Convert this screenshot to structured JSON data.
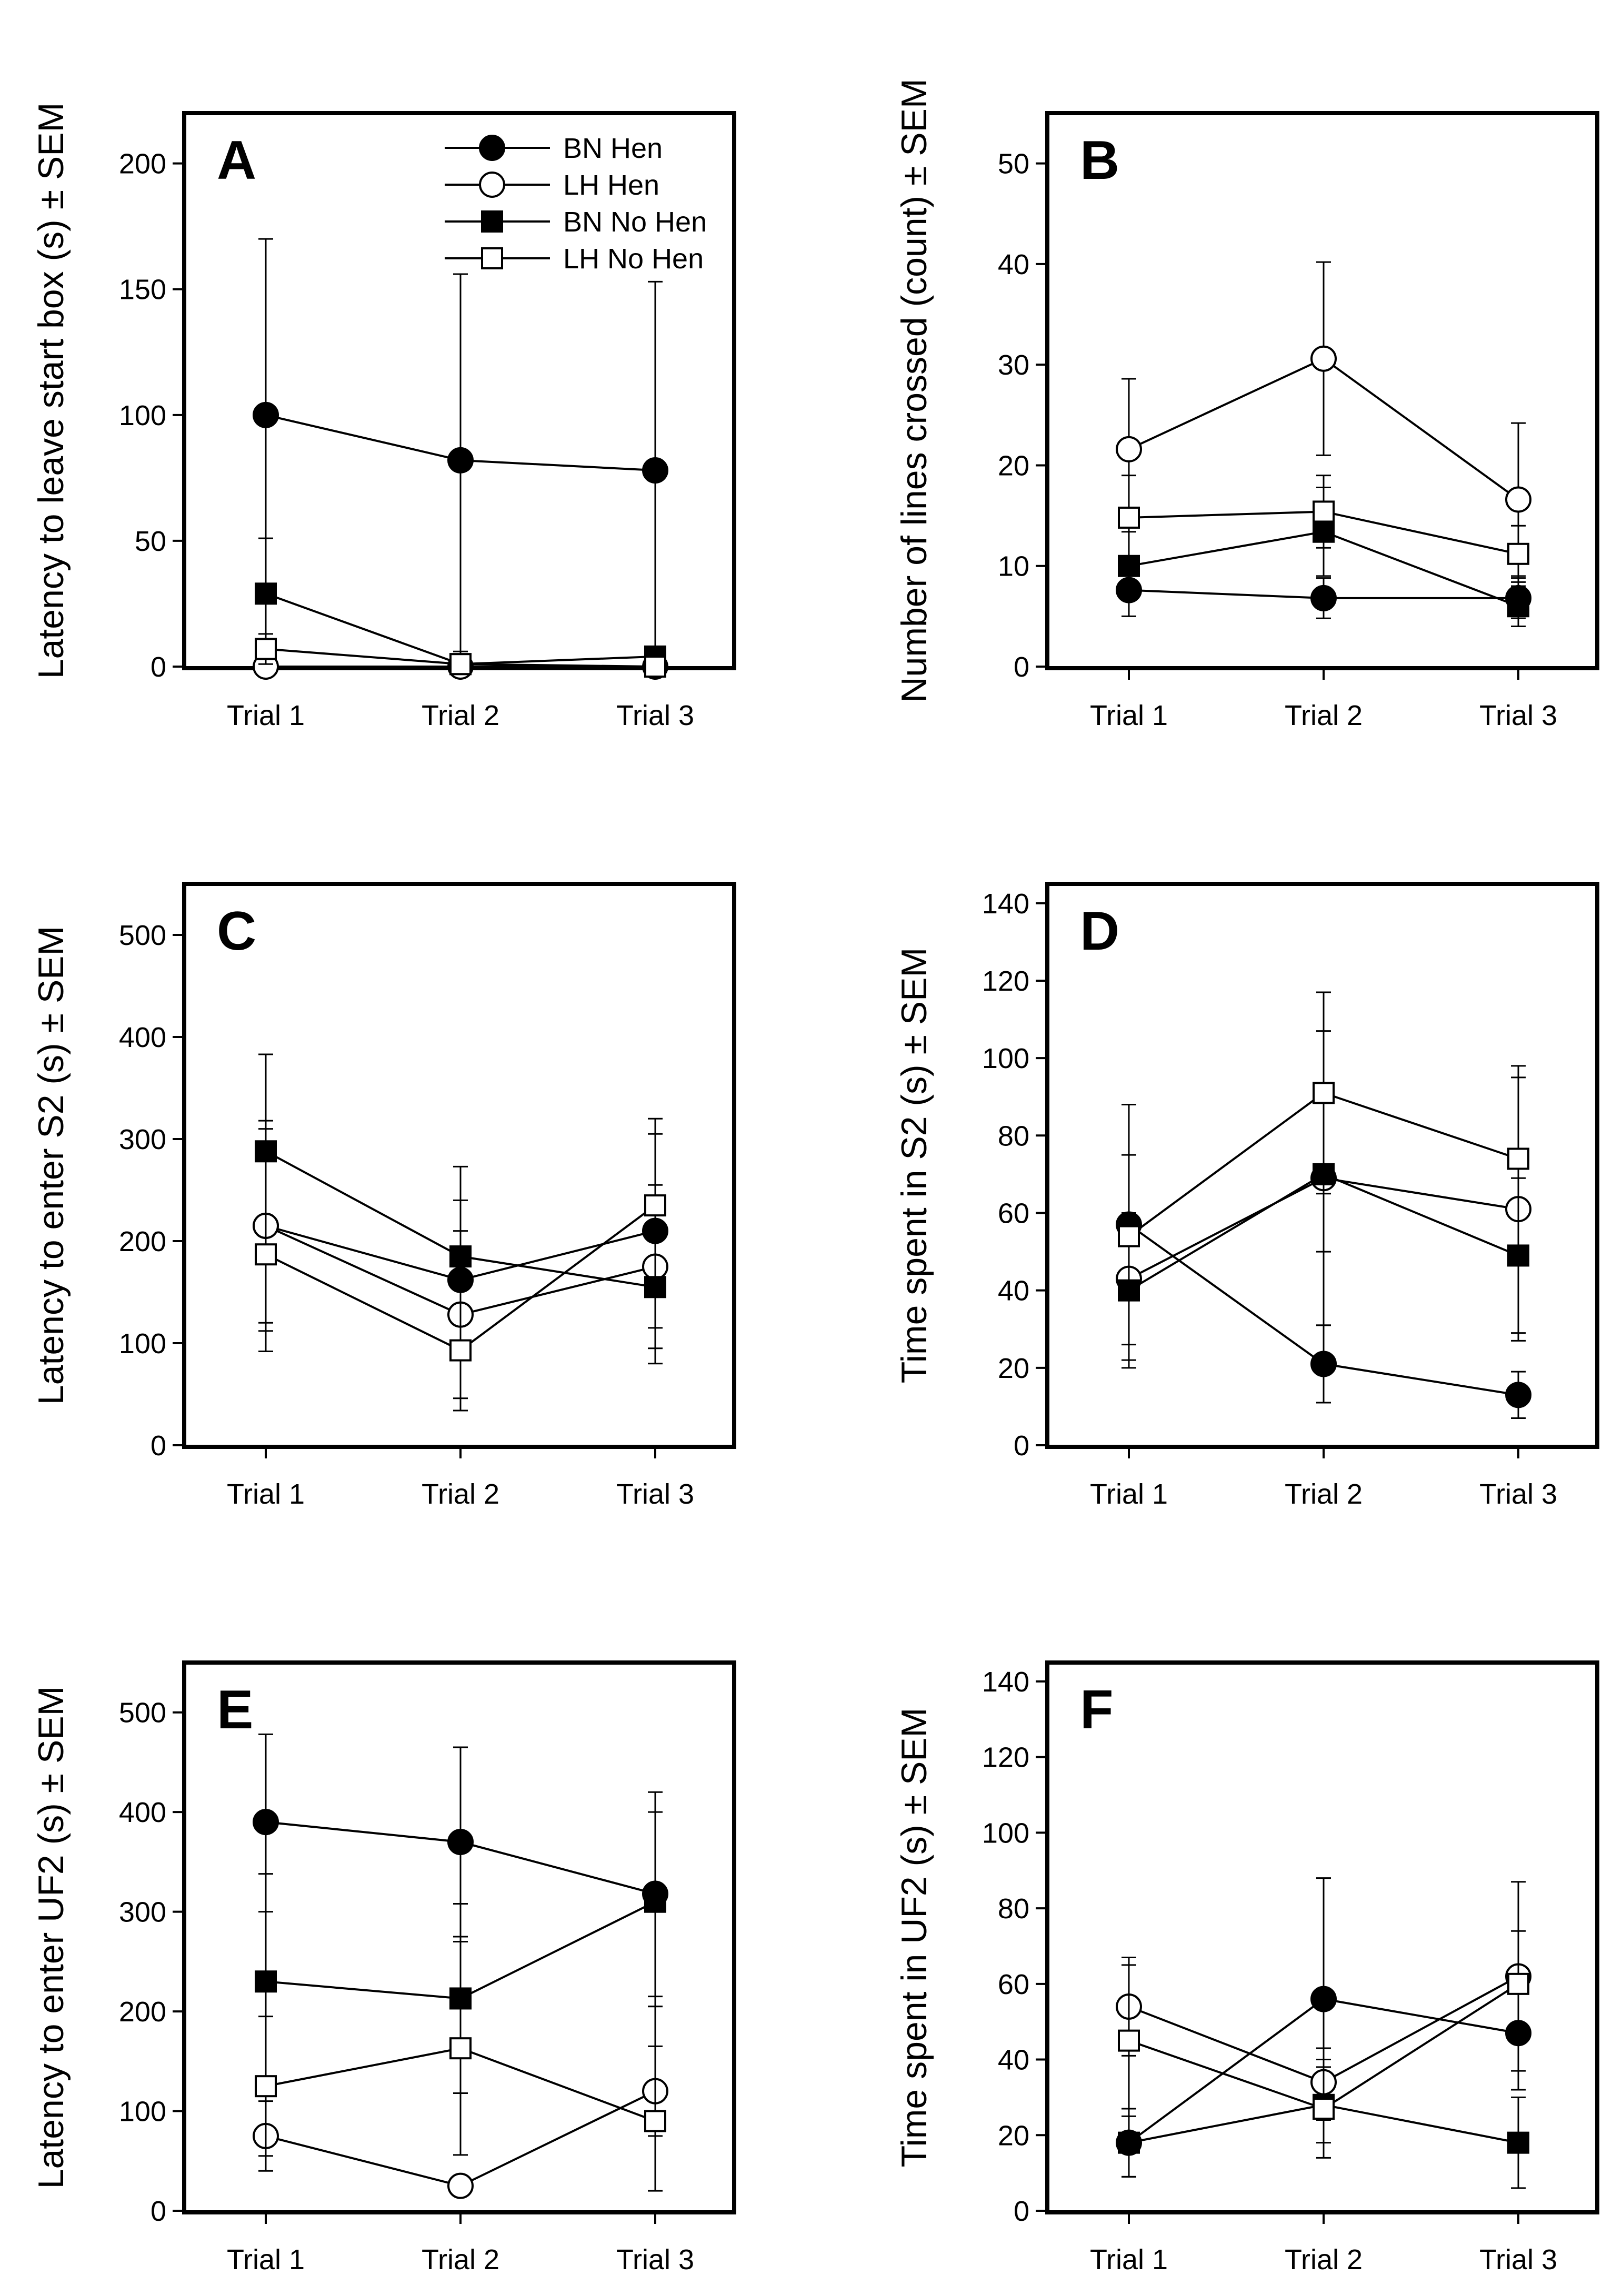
{
  "chart_data": [
    {
      "type": "line",
      "panel": "A",
      "ylabel": "Latency to leave start box (s) ± SEM",
      "categories": [
        "Trial 1",
        "Trial 2",
        "Trial 3"
      ],
      "ylim": [
        0,
        220
      ],
      "yticks": [
        0,
        50,
        100,
        150,
        200
      ],
      "series": [
        {
          "name": "BN Hen",
          "marker": "circle-filled",
          "values": [
            100,
            82,
            78
          ],
          "upper": [
            170,
            156,
            153
          ],
          "lower": [
            0,
            0,
            0
          ]
        },
        {
          "name": "LH Hen",
          "marker": "circle-open",
          "values": [
            0,
            0,
            0
          ],
          "upper": [
            2,
            2,
            2
          ],
          "lower": [
            0,
            0,
            0
          ]
        },
        {
          "name": "BN No Hen",
          "marker": "square-filled",
          "values": [
            29,
            1,
            4
          ],
          "upper": [
            51,
            6,
            8
          ],
          "lower": [
            7,
            0,
            0
          ]
        },
        {
          "name": "LH No Hen",
          "marker": "square-open",
          "values": [
            7,
            1,
            0
          ],
          "upper": [
            13,
            3,
            2
          ],
          "lower": [
            1,
            0,
            0
          ]
        }
      ],
      "legend": {
        "position": "top-right",
        "entries": [
          "BN Hen",
          "LH Hen",
          "BN No Hen",
          "LH No Hen"
        ]
      }
    },
    {
      "type": "line",
      "panel": "B",
      "ylabel": "Number of lines crossed (count) ± SEM",
      "categories": [
        "Trial 1",
        "Trial 2",
        "Trial 3"
      ],
      "ylim": [
        0,
        55
      ],
      "yticks": [
        0,
        10,
        20,
        30,
        40,
        50
      ],
      "series": [
        {
          "name": "BN Hen",
          "marker": "circle-filled",
          "values": [
            7.6,
            6.8,
            6.8
          ],
          "upper": [
            10.2,
            8.8,
            8.8
          ],
          "lower": [
            5.0,
            4.8,
            4.8
          ]
        },
        {
          "name": "LH Hen",
          "marker": "circle-open",
          "values": [
            21.6,
            30.6,
            16.6
          ],
          "upper": [
            28.6,
            40.2,
            24.2
          ],
          "lower": [
            14.6,
            21.0,
            9.0
          ]
        },
        {
          "name": "BN No Hen",
          "marker": "square-filled",
          "values": [
            10,
            13.4,
            6
          ],
          "upper": [
            13.4,
            17.8,
            8.0
          ],
          "lower": [
            6.6,
            9.0,
            4.0
          ]
        },
        {
          "name": "LH No Hen",
          "marker": "square-open",
          "values": [
            14.8,
            15.4,
            11.2
          ],
          "upper": [
            19.0,
            19.0,
            14.0
          ],
          "lower": [
            10.6,
            11.8,
            8.4
          ]
        }
      ]
    },
    {
      "type": "line",
      "panel": "C",
      "ylabel": "Latency to enter S2 (s) ± SEM",
      "categories": [
        "Trial 1",
        "Trial 2",
        "Trial 3"
      ],
      "ylim": [
        0,
        550
      ],
      "yticks": [
        0,
        100,
        200,
        300,
        400,
        500
      ],
      "series": [
        {
          "name": "BN Hen",
          "marker": "circle-filled",
          "values": [
            215,
            162,
            210
          ],
          "upper": [
            310,
            240,
            305
          ],
          "lower": [
            120,
            85,
            115
          ]
        },
        {
          "name": "LH Hen",
          "marker": "circle-open",
          "values": [
            215,
            128,
            175
          ],
          "upper": [
            318,
            210,
            255
          ],
          "lower": [
            112,
            46,
            95
          ]
        },
        {
          "name": "BN No Hen",
          "marker": "square-filled",
          "values": [
            288,
            185,
            155
          ],
          "upper": [
            383,
            273,
            230
          ],
          "lower": [
            193,
            97,
            80
          ]
        },
        {
          "name": "LH No Hen",
          "marker": "square-open",
          "values": [
            187,
            93,
            235
          ],
          "upper": [
            282,
            152,
            320
          ],
          "lower": [
            92,
            34,
            150
          ]
        }
      ]
    },
    {
      "type": "line",
      "panel": "D",
      "ylabel": "Time spent in S2 (s) ± SEM",
      "categories": [
        "Trial 1",
        "Trial 2",
        "Trial 3"
      ],
      "ylim": [
        0,
        145
      ],
      "yticks": [
        0,
        20,
        40,
        60,
        80,
        100,
        120,
        140
      ],
      "series": [
        {
          "name": "BN Hen",
          "marker": "circle-filled",
          "values": [
            57,
            21,
            13
          ],
          "upper": [
            75,
            31,
            19
          ],
          "lower": [
            39,
            11,
            7
          ]
        },
        {
          "name": "LH Hen",
          "marker": "circle-open",
          "values": [
            43,
            69,
            61
          ],
          "upper": [
            60,
            107,
            95
          ],
          "lower": [
            26,
            31,
            27
          ]
        },
        {
          "name": "BN No Hen",
          "marker": "square-filled",
          "values": [
            40,
            70,
            49
          ],
          "upper": [
            58,
            90,
            69
          ],
          "lower": [
            22,
            50,
            29
          ]
        },
        {
          "name": "LH No Hen",
          "marker": "square-open",
          "values": [
            54,
            91,
            74
          ],
          "upper": [
            88,
            117,
            98
          ],
          "lower": [
            20,
            65,
            50
          ]
        }
      ]
    },
    {
      "type": "line",
      "panel": "E",
      "ylabel": "Latency to enter UF2 (s) ± SEM",
      "categories": [
        "Trial 1",
        "Trial 2",
        "Trial 3"
      ],
      "ylim": [
        0,
        550
      ],
      "yticks": [
        0,
        100,
        200,
        300,
        400,
        500
      ],
      "series": [
        {
          "name": "BN Hen",
          "marker": "circle-filled",
          "values": [
            390,
            370,
            318
          ],
          "upper": [
            478,
            465,
            420
          ],
          "lower": [
            300,
            275,
            215
          ]
        },
        {
          "name": "LH Hen",
          "marker": "circle-open",
          "values": [
            75,
            25,
            120
          ],
          "upper": [
            110,
            30,
            165
          ],
          "lower": [
            40,
            20,
            75
          ]
        },
        {
          "name": "BN No Hen",
          "marker": "square-filled",
          "values": [
            230,
            213,
            310
          ],
          "upper": [
            338,
            308,
            400
          ],
          "lower": [
            122,
            118,
            205
          ]
        },
        {
          "name": "LH No Hen",
          "marker": "square-open",
          "values": [
            125,
            163,
            90
          ],
          "upper": [
            195,
            270,
            205
          ],
          "lower": [
            55,
            56,
            20
          ]
        }
      ]
    },
    {
      "type": "line",
      "panel": "F",
      "ylabel": "Time spent in UF2 (s) ± SEM",
      "categories": [
        "Trial 1",
        "Trial 2",
        "Trial 3"
      ],
      "ylim": [
        0,
        145
      ],
      "yticks": [
        0,
        20,
        40,
        60,
        80,
        100,
        120,
        140
      ],
      "series": [
        {
          "name": "BN Hen",
          "marker": "circle-filled",
          "values": [
            18,
            56,
            47
          ],
          "upper": [
            27,
            88,
            62
          ],
          "lower": [
            9,
            24,
            32
          ]
        },
        {
          "name": "LH Hen",
          "marker": "circle-open",
          "values": [
            54,
            34,
            62
          ],
          "upper": [
            67,
            43,
            87
          ],
          "lower": [
            41,
            25,
            37
          ]
        },
        {
          "name": "BN No Hen",
          "marker": "square-filled",
          "values": [
            18,
            28,
            18
          ],
          "upper": [
            27,
            38,
            30
          ],
          "lower": [
            9,
            18,
            6
          ]
        },
        {
          "name": "LH No Hen",
          "marker": "square-open",
          "values": [
            45,
            27,
            60
          ],
          "upper": [
            65,
            40,
            74
          ],
          "lower": [
            25,
            14,
            46
          ]
        }
      ]
    }
  ]
}
